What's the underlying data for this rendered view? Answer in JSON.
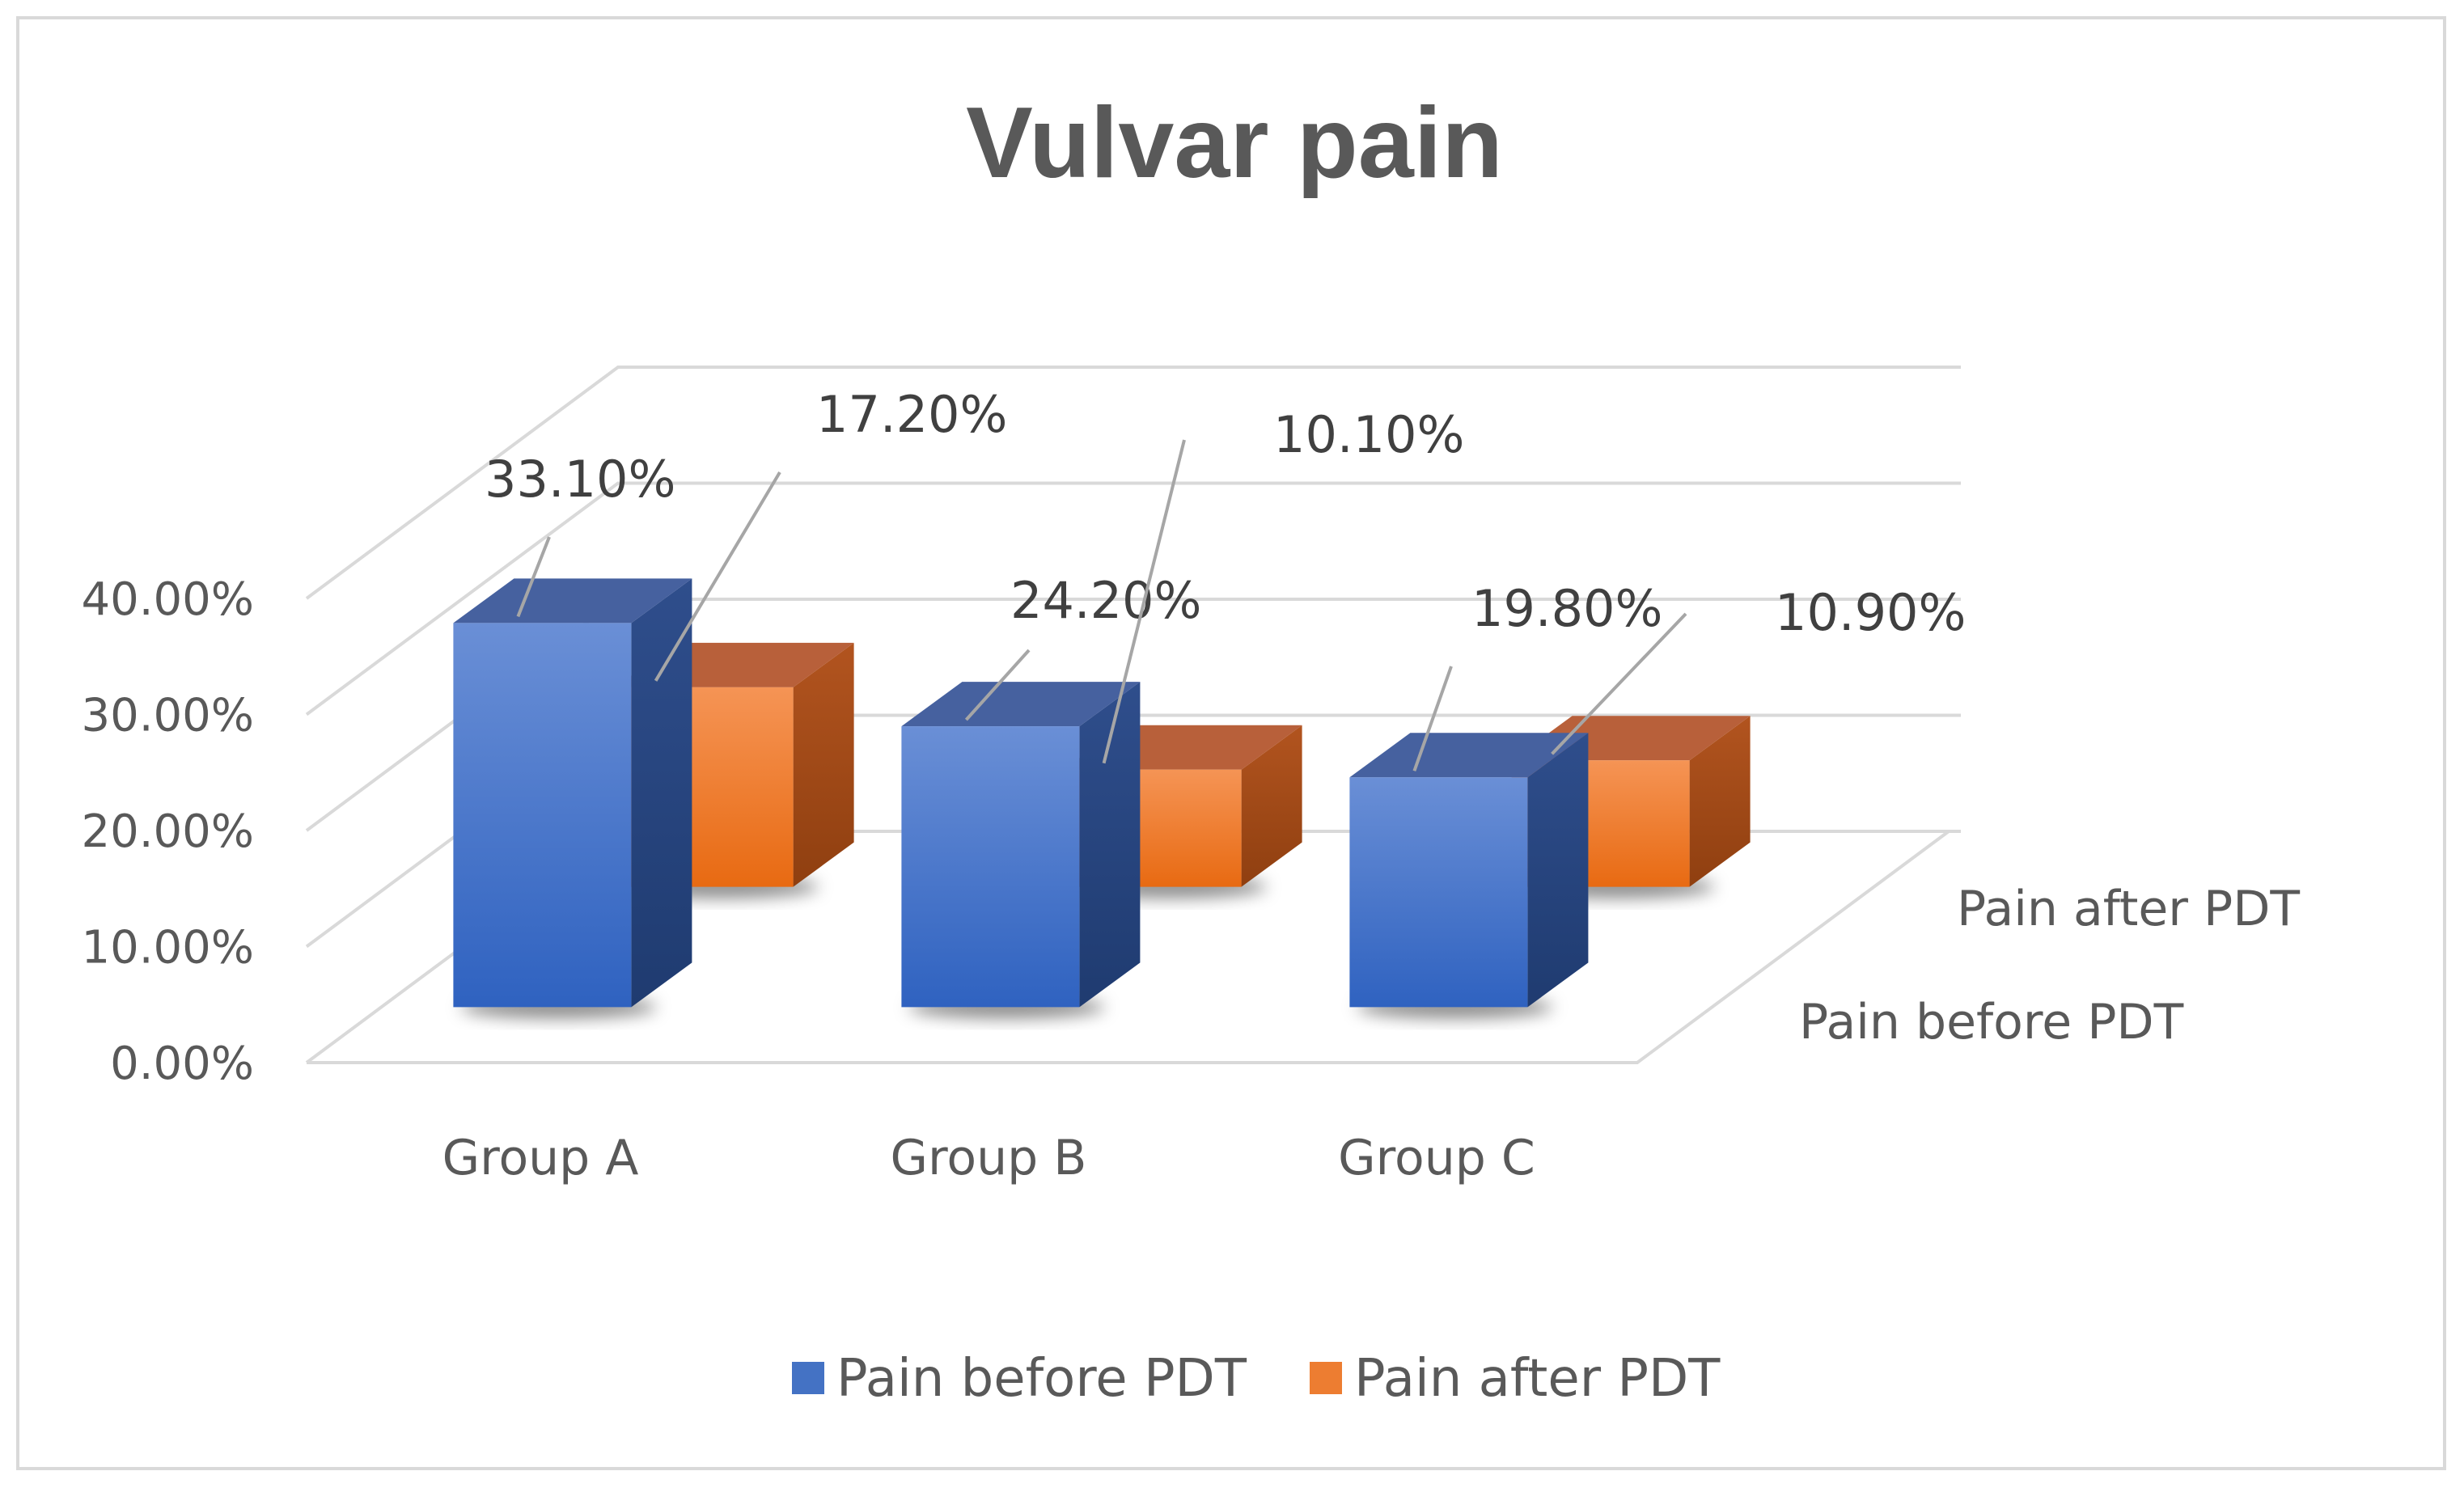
{
  "chart_data": {
    "type": "bar",
    "variant": "3d-clustered-column",
    "title": "Vulvar pain",
    "categories": [
      "Group A",
      "Group B",
      "Group C"
    ],
    "series": [
      {
        "name": "Pain before PDT",
        "values": [
          33.1,
          24.2,
          19.8
        ],
        "labels": [
          "33.10%",
          "24.20%",
          "19.80%"
        ],
        "color": "#4472c4"
      },
      {
        "name": "Pain after PDT",
        "values": [
          17.2,
          10.1,
          10.9
        ],
        "labels": [
          "17.20%",
          "10.10%",
          "10.90%"
        ],
        "color": "#ed7d31"
      }
    ],
    "y_ticks": [
      "0.00%",
      "10.00%",
      "20.00%",
      "30.00%",
      "40.00%"
    ],
    "y_tick_values": [
      0,
      10,
      20,
      30,
      40
    ],
    "ylim": [
      0,
      40
    ],
    "depth_axis_labels": [
      "Pain before PDT",
      "Pain after PDT"
    ],
    "legend": [
      "Pain before PDT",
      "Pain after PDT"
    ],
    "legend_position": "bottom",
    "grid": true,
    "value_format": "percent"
  }
}
